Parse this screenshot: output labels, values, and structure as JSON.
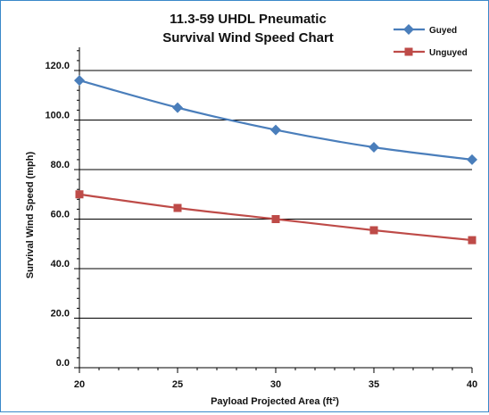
{
  "chart_data": {
    "type": "line",
    "title_line1": "11.3-59 UHDL Pneumatic",
    "title_line2": "Survival Wind Speed Chart",
    "xlabel": "Payload Projected Area (ft²)",
    "ylabel": "Survival Wind Speed (mph)",
    "x": [
      20,
      25,
      30,
      35,
      40
    ],
    "x_tick_labels": [
      "20",
      "25",
      "30",
      "35",
      "40"
    ],
    "y_tick_labels": [
      "0.0",
      "20.0",
      "40.0",
      "60.0",
      "80.0",
      "100.0",
      "120.0"
    ],
    "y_ticks": [
      0,
      20,
      40,
      60,
      80,
      100,
      120
    ],
    "xlim": [
      20,
      40
    ],
    "ylim": [
      0,
      120
    ],
    "grid": "horizontal",
    "legend_position": "top-right",
    "series": [
      {
        "name": "Guyed",
        "marker": "diamond",
        "color": "#4a7ebb",
        "values": [
          116,
          105,
          96,
          89,
          84
        ]
      },
      {
        "name": "Unguyed",
        "marker": "square",
        "color": "#be4b48",
        "values": [
          70,
          64.5,
          60,
          55.5,
          51.5
        ]
      }
    ]
  }
}
